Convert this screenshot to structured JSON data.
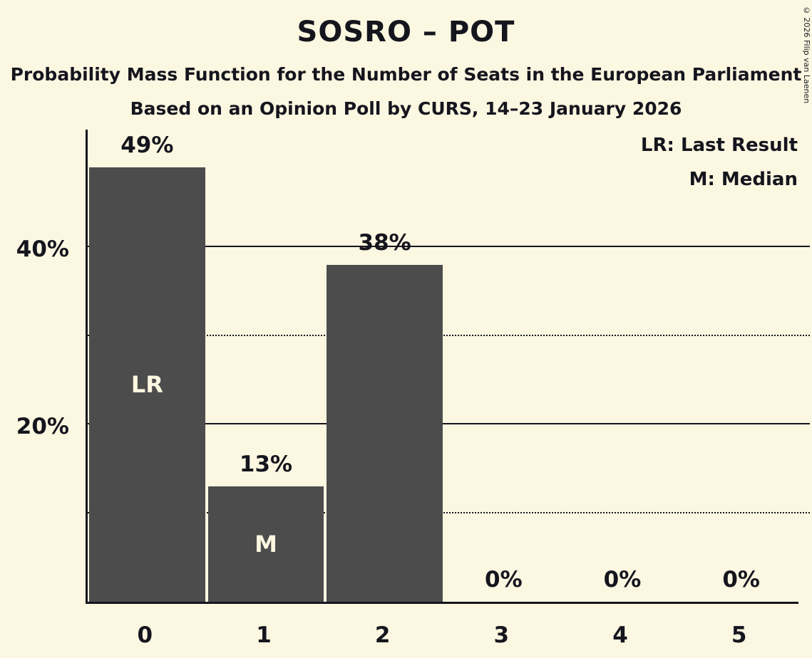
{
  "title": "SOSRO – POT",
  "subtitles": [
    "Probability Mass Function for the Number of Seats in the European Parliament",
    "Based on an Opinion Poll by CURS, 14–23 January 2026"
  ],
  "legend": {
    "last_result": "LR: Last Result",
    "median": "M: Median"
  },
  "copyright": "© 2026 Filip van Laenen",
  "colors": {
    "background": "#fcf7e1",
    "bar": "#4c4c4c",
    "text": "#15151e",
    "bar_label": "#fcf7e1"
  },
  "chart_data": {
    "type": "bar",
    "title": "SOSRO – POT",
    "categories": [
      "0",
      "1",
      "2",
      "3",
      "4",
      "5"
    ],
    "values": [
      49,
      13,
      38,
      0,
      0,
      0
    ],
    "value_labels": [
      "49%",
      "13%",
      "38%",
      "0%",
      "0%",
      "0%"
    ],
    "annotations": [
      {
        "category_index": 0,
        "label": "LR",
        "meaning": "Last Result"
      },
      {
        "category_index": 1,
        "label": "M",
        "meaning": "Median"
      }
    ],
    "ylim": [
      0,
      53.5
    ],
    "yticks": [
      {
        "value": 10,
        "label": "",
        "line": "dotted"
      },
      {
        "value": 20,
        "label": "20%",
        "line": "solid"
      },
      {
        "value": 30,
        "label": "",
        "line": "dotted"
      },
      {
        "value": 40,
        "label": "40%",
        "line": "solid"
      }
    ],
    "grid": "horizontal",
    "legend_position": "top-right"
  }
}
